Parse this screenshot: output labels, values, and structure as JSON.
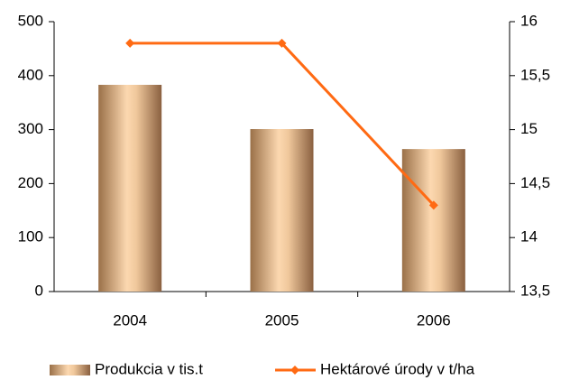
{
  "chart_data": {
    "type": "bar_line",
    "categories": [
      "2004",
      "2005",
      "2006"
    ],
    "series": [
      {
        "name": "Produkcia  v tis.t",
        "type": "bar",
        "color": "#c8a078",
        "values": [
          383,
          301,
          264
        ]
      },
      {
        "name": "Hektárové úrody v t/ha",
        "type": "line",
        "axis": "y2",
        "color": "#ff6a13",
        "values": [
          15.8,
          15.8,
          14.3
        ]
      }
    ],
    "ylim": [
      0,
      500
    ],
    "yticks": [
      0,
      100,
      200,
      300,
      400,
      500
    ],
    "y2lim": [
      13.5,
      16
    ],
    "y2ticks": [
      {
        "value": 13.5,
        "label": "13,5"
      },
      14,
      {
        "value": 14.5,
        "label": "14,5"
      },
      15,
      {
        "value": 15.5,
        "label": "15,5"
      },
      16
    ],
    "grid": false,
    "legend": "bottom"
  }
}
